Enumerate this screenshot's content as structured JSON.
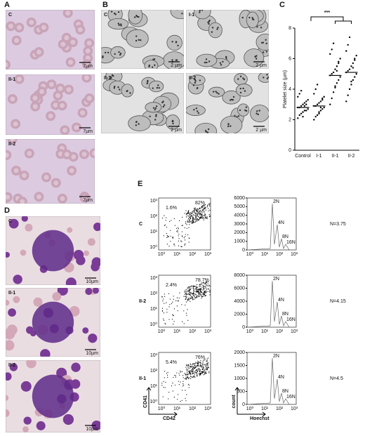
{
  "panel_a": {
    "label": "A",
    "images": [
      {
        "label": "C",
        "scale": "7µm"
      },
      {
        "label": "II-1",
        "scale": "7µm"
      },
      {
        "label": "II-2",
        "scale": "7µm"
      }
    ]
  },
  "panel_b": {
    "label": "B",
    "images": [
      {
        "label": "C",
        "scale": "2 µm"
      },
      {
        "label": "I-1",
        "scale": "2 µm"
      },
      {
        "label": "II-1",
        "scale": "2 µm"
      },
      {
        "label": "II-2",
        "scale": "2 µm"
      }
    ]
  },
  "panel_c": {
    "label": "C",
    "type": "scatter",
    "y_label": "Platelet size (µm)",
    "significance": "***",
    "categories": [
      "Control",
      "I-1",
      "II-1",
      "II-2"
    ],
    "ylim": [
      0,
      8
    ],
    "yticks": [
      0,
      2,
      4,
      6,
      8
    ],
    "means": [
      2.8,
      2.9,
      4.9,
      5.1
    ],
    "groups": [
      {
        "values": [
          2.1,
          2.3,
          2.4,
          2.5,
          2.6,
          2.6,
          2.7,
          2.8,
          2.8,
          2.9,
          3.0,
          3.1,
          3.2,
          3.3,
          3.5,
          3.7,
          3.9,
          2.2,
          2.9,
          3.0
        ]
      },
      {
        "values": [
          2.0,
          2.2,
          2.3,
          2.5,
          2.6,
          2.7,
          2.8,
          2.9,
          2.9,
          3.0,
          3.1,
          3.2,
          3.3,
          3.5,
          3.7,
          4.0,
          4.3,
          2.4,
          2.8,
          3.4
        ]
      },
      {
        "values": [
          3.0,
          3.4,
          3.8,
          4.1,
          4.4,
          4.6,
          4.8,
          4.9,
          5.0,
          5.1,
          5.3,
          5.5,
          5.7,
          6.0,
          6.3,
          6.6,
          7.0,
          4.2,
          5.2,
          5.8
        ]
      },
      {
        "values": [
          3.2,
          3.6,
          4.0,
          4.3,
          4.6,
          4.8,
          5.0,
          5.1,
          5.2,
          5.3,
          5.5,
          5.7,
          5.9,
          6.2,
          6.5,
          6.9,
          7.4,
          4.5,
          5.4,
          6.0
        ]
      }
    ]
  },
  "panel_d": {
    "label": "D",
    "images": [
      {
        "label": "C",
        "scale": "10µm"
      },
      {
        "label": "II-1",
        "scale": "10µm"
      },
      {
        "label": "II-2",
        "scale": "10µm"
      }
    ]
  },
  "panel_e": {
    "label": "E",
    "flow_ticks": [
      "10⁰",
      "10¹",
      "10²",
      "10³"
    ],
    "ploidy": [
      "2N",
      "4N",
      "8N",
      "16N"
    ],
    "x_label": "CD42",
    "y_label": "CD41",
    "hist_x_label": "Hoechst",
    "hist_y_label": "count",
    "rows": [
      {
        "label": "C",
        "gate_low": "1.6%",
        "gate_high": "82%",
        "hist_ylim": [
          0,
          6000
        ],
        "hist_yticks": [
          0,
          1000,
          2000,
          3000,
          4000,
          5000,
          6000
        ],
        "n": "N=3.75"
      },
      {
        "label": "II-2",
        "gate_low": "2.4%",
        "gate_high": "78.7%",
        "hist_ylim": [
          0,
          8000
        ],
        "hist_yticks": [
          0,
          2000,
          4000,
          6000,
          8000
        ],
        "n": "N=4.15"
      },
      {
        "label": "II-1",
        "gate_low": "5.4%",
        "gate_high": "76%",
        "hist_ylim": [
          0,
          2000
        ],
        "hist_yticks": [
          0,
          500,
          1000,
          1500,
          2000
        ],
        "n": "N=4.5"
      }
    ]
  }
}
